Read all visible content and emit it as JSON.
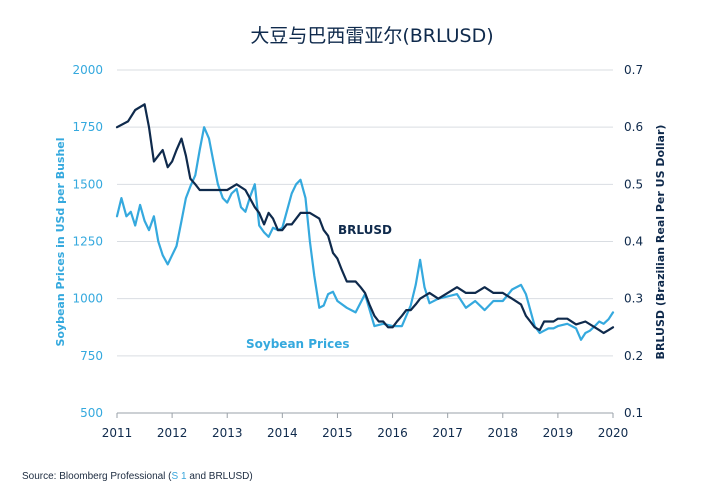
{
  "colors": {
    "navy": "#0f2a4c",
    "cyan": "#35a9de",
    "grid": "#d9dde2",
    "axis": "#9aa1a8"
  },
  "footer": {
    "prefix": "Source: Bloomberg Professional (",
    "link": "S 1",
    "suffix": " and BRLUSD)"
  },
  "chart_data": {
    "type": "line",
    "title": "大豆与巴西雷亚尔(BRLUSD)",
    "ylabel_left": "Soybean Prices in USd per Bushel",
    "ylabel_right": "BRLUSD (Brazilian Real Per US Dollar)",
    "xlim": [
      2011,
      2020
    ],
    "ylim_left": [
      500,
      2000
    ],
    "ylim_right": [
      0.1,
      0.7
    ],
    "x_ticks": [
      2011,
      2012,
      2013,
      2014,
      2015,
      2016,
      2017,
      2018,
      2019,
      2020
    ],
    "y_ticks_left": [
      500,
      750,
      1000,
      1250,
      1500,
      1750,
      2000
    ],
    "y_ticks_right": [
      "0.1",
      "0.2",
      "0.3",
      "0.4",
      "0.5",
      "0.6",
      "0.7"
    ],
    "grid": "horizontal",
    "annotations": [
      {
        "text": "BRLUSD",
        "series": "BRLUSD"
      },
      {
        "text": "Soybean Prices",
        "series": "Soybean Prices"
      }
    ],
    "series": [
      {
        "name": "BRLUSD",
        "axis": "right",
        "color": "#0f2a4c",
        "x": [
          2011.0,
          2011.2,
          2011.33,
          2011.5,
          2011.58,
          2011.67,
          2011.75,
          2011.83,
          2011.92,
          2012.0,
          2012.08,
          2012.17,
          2012.25,
          2012.33,
          2012.42,
          2012.5,
          2012.67,
          2012.83,
          2013.0,
          2013.17,
          2013.33,
          2013.5,
          2013.58,
          2013.67,
          2013.75,
          2013.83,
          2013.92,
          2014.0,
          2014.08,
          2014.17,
          2014.33,
          2014.5,
          2014.67,
          2014.75,
          2014.83,
          2014.92,
          2015.0,
          2015.08,
          2015.17,
          2015.25,
          2015.33,
          2015.42,
          2015.5,
          2015.58,
          2015.67,
          2015.75,
          2015.83,
          2015.92,
          2016.0,
          2016.08,
          2016.17,
          2016.25,
          2016.33,
          2016.42,
          2016.5,
          2016.67,
          2016.83,
          2017.0,
          2017.17,
          2017.33,
          2017.5,
          2017.67,
          2017.83,
          2018.0,
          2018.17,
          2018.33,
          2018.42,
          2018.5,
          2018.58,
          2018.67,
          2018.75,
          2018.83,
          2018.92,
          2019.0,
          2019.17,
          2019.33,
          2019.5,
          2019.67,
          2019.75,
          2019.83,
          2019.92,
          2020.0
        ],
        "y": [
          0.6,
          0.61,
          0.63,
          0.64,
          0.6,
          0.54,
          0.55,
          0.56,
          0.53,
          0.54,
          0.56,
          0.58,
          0.55,
          0.51,
          0.5,
          0.49,
          0.49,
          0.49,
          0.49,
          0.5,
          0.49,
          0.46,
          0.45,
          0.43,
          0.45,
          0.44,
          0.42,
          0.42,
          0.43,
          0.43,
          0.45,
          0.45,
          0.44,
          0.42,
          0.41,
          0.38,
          0.37,
          0.35,
          0.33,
          0.33,
          0.33,
          0.32,
          0.31,
          0.29,
          0.27,
          0.26,
          0.26,
          0.25,
          0.25,
          0.26,
          0.27,
          0.28,
          0.28,
          0.29,
          0.3,
          0.31,
          0.3,
          0.31,
          0.32,
          0.31,
          0.31,
          0.32,
          0.31,
          0.31,
          0.3,
          0.29,
          0.27,
          0.26,
          0.25,
          0.245,
          0.26,
          0.26,
          0.26,
          0.265,
          0.265,
          0.255,
          0.26,
          0.25,
          0.245,
          0.24,
          0.245,
          0.25
        ]
      },
      {
        "name": "Soybean Prices",
        "axis": "left",
        "color": "#35a9de",
        "x": [
          2011.0,
          2011.08,
          2011.17,
          2011.25,
          2011.33,
          2011.42,
          2011.5,
          2011.58,
          2011.67,
          2011.75,
          2011.83,
          2011.92,
          2012.0,
          2012.08,
          2012.17,
          2012.25,
          2012.33,
          2012.42,
          2012.5,
          2012.58,
          2012.67,
          2012.75,
          2012.83,
          2012.92,
          2013.0,
          2013.08,
          2013.17,
          2013.25,
          2013.33,
          2013.42,
          2013.5,
          2013.58,
          2013.67,
          2013.75,
          2013.83,
          2013.92,
          2014.0,
          2014.08,
          2014.17,
          2014.25,
          2014.33,
          2014.42,
          2014.5,
          2014.58,
          2014.67,
          2014.75,
          2014.83,
          2014.92,
          2015.0,
          2015.17,
          2015.33,
          2015.5,
          2015.67,
          2015.83,
          2016.0,
          2016.17,
          2016.33,
          2016.42,
          2016.5,
          2016.58,
          2016.67,
          2016.83,
          2017.0,
          2017.17,
          2017.33,
          2017.5,
          2017.67,
          2017.83,
          2018.0,
          2018.17,
          2018.33,
          2018.42,
          2018.5,
          2018.58,
          2018.67,
          2018.75,
          2018.83,
          2018.92,
          2019.0,
          2019.17,
          2019.33,
          2019.42,
          2019.5,
          2019.58,
          2019.67,
          2019.75,
          2019.83,
          2019.92,
          2020.0
        ],
        "y": [
          1360,
          1440,
          1360,
          1380,
          1320,
          1410,
          1340,
          1300,
          1360,
          1250,
          1190,
          1150,
          1190,
          1230,
          1340,
          1440,
          1490,
          1540,
          1650,
          1750,
          1700,
          1600,
          1500,
          1440,
          1420,
          1460,
          1480,
          1400,
          1380,
          1450,
          1500,
          1320,
          1290,
          1270,
          1310,
          1300,
          1310,
          1380,
          1460,
          1500,
          1520,
          1440,
          1250,
          1100,
          960,
          970,
          1020,
          1030,
          990,
          960,
          940,
          1020,
          880,
          890,
          880,
          880,
          970,
          1060,
          1170,
          1050,
          980,
          1000,
          1010,
          1020,
          960,
          990,
          950,
          990,
          990,
          1040,
          1060,
          1020,
          950,
          880,
          850,
          860,
          870,
          870,
          880,
          890,
          870,
          820,
          850,
          860,
          880,
          900,
          890,
          910,
          940
        ]
      }
    ]
  }
}
